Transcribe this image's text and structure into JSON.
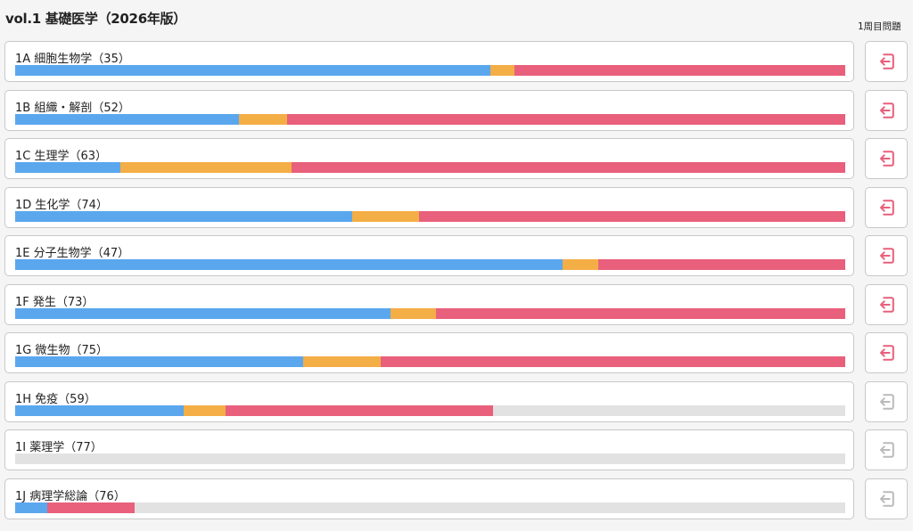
{
  "header": {
    "title": "vol.1 基礎医学（2026年版）",
    "column_label": "1周目問題"
  },
  "colors": {
    "correct": "#5aa7ee",
    "partial": "#f4ae46",
    "incorrect": "#e8607c",
    "unanswered": "#e2e2e2",
    "button_active": "#e8607c",
    "button_inactive": "#bbbbbb"
  },
  "chapters": [
    {
      "label": "1A 細胞生物学（35）",
      "progress": {
        "blue": 0.572,
        "orange": 0.029,
        "red": 0.399
      },
      "review_button": {
        "icon": "return-icon",
        "active": true
      }
    },
    {
      "label": "1B 組織・解剖（52）",
      "progress": {
        "blue": 0.27,
        "orange": 0.058,
        "red": 0.672
      },
      "review_button": {
        "icon": "return-icon",
        "active": true
      }
    },
    {
      "label": "1C 生理学（63）",
      "progress": {
        "blue": 0.127,
        "orange": 0.206,
        "red": 0.667
      },
      "review_button": {
        "icon": "return-icon",
        "active": true
      }
    },
    {
      "label": "1D 生化学（74）",
      "progress": {
        "blue": 0.406,
        "orange": 0.081,
        "red": 0.513
      },
      "review_button": {
        "icon": "return-icon",
        "active": true
      }
    },
    {
      "label": "1E 分子生物学（47）",
      "progress": {
        "blue": 0.66,
        "orange": 0.043,
        "red": 0.297
      },
      "review_button": {
        "icon": "return-icon",
        "active": true
      }
    },
    {
      "label": "1F 発生（73）",
      "progress": {
        "blue": 0.452,
        "orange": 0.055,
        "red": 0.493
      },
      "review_button": {
        "icon": "return-icon",
        "active": true
      }
    },
    {
      "label": "1G 微生物（75）",
      "progress": {
        "blue": 0.347,
        "orange": 0.093,
        "red": 0.56
      },
      "review_button": {
        "icon": "return-icon",
        "active": true
      }
    },
    {
      "label": "1H 免疫（59）",
      "progress": {
        "blue": 0.203,
        "orange": 0.051,
        "red": 0.322
      },
      "review_button": {
        "icon": "return-icon",
        "active": false
      }
    },
    {
      "label": "1I 薬理学（77）",
      "progress": {
        "blue": 0,
        "orange": 0,
        "red": 0
      },
      "review_button": {
        "icon": "return-icon",
        "active": false
      }
    },
    {
      "label": "1J 病理学総論（76）",
      "progress": {
        "blue": 0.039,
        "orange": 0,
        "red": 0.105
      },
      "review_button": {
        "icon": "return-icon",
        "active": false
      }
    }
  ]
}
